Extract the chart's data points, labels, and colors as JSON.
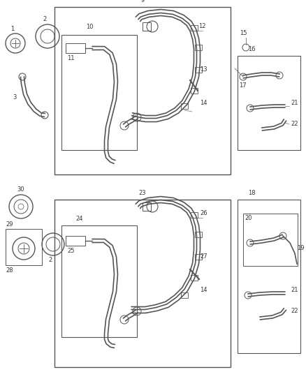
{
  "bg_color": "#ffffff",
  "line_color": "#555555",
  "text_color": "#333333",
  "fig_w": 4.38,
  "fig_h": 5.33,
  "dpi": 100
}
